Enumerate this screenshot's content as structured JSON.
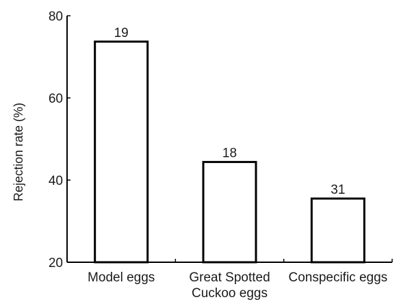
{
  "chart_data": {
    "type": "bar",
    "title": "",
    "xlabel": "",
    "ylabel": "Rejection rate (%)",
    "categories": [
      [
        "Model eggs"
      ],
      [
        "Great Spotted",
        "Cuckoo eggs"
      ],
      [
        "Conspecific eggs"
      ]
    ],
    "values": [
      73.7,
      44.4,
      35.5
    ],
    "data_labels": [
      "19",
      "18",
      "31"
    ],
    "ylim": [
      20,
      80
    ],
    "yticks": [
      20,
      40,
      60,
      80
    ],
    "grid": false,
    "legend": "none",
    "colors": {
      "bar_fill": "#ffffff",
      "bar_stroke": "#000000",
      "text": "#1a1a1a"
    }
  }
}
